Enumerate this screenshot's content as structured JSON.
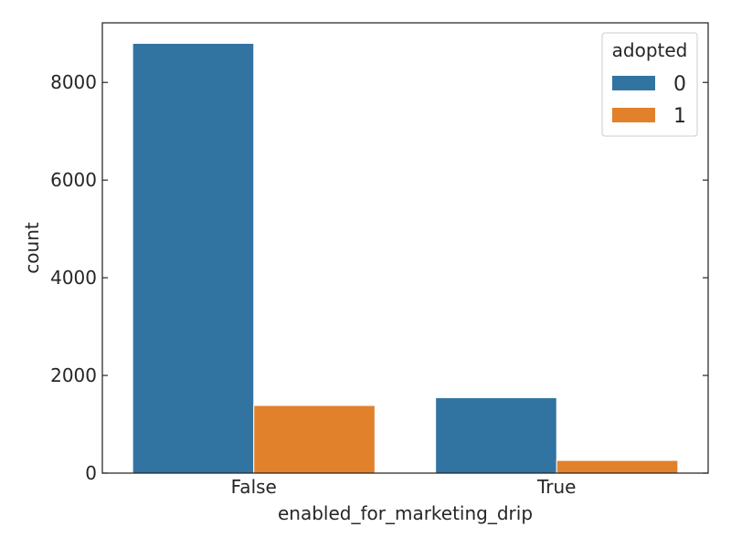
{
  "chart_data": {
    "type": "bar",
    "categories": [
      "False",
      "True"
    ],
    "series": [
      {
        "name": "0",
        "color": "#3274a1",
        "values": [
          8800,
          1545
        ]
      },
      {
        "name": "1",
        "color": "#e1812c",
        "values": [
          1385,
          260
        ]
      }
    ],
    "xlabel": "enabled_for_marketing_drip",
    "ylabel": "count",
    "ylim": [
      0,
      9220
    ],
    "yticks": [
      0,
      2000,
      4000,
      6000,
      8000
    ],
    "yticklabels": [
      "0",
      "2000",
      "4000",
      "6000",
      "8000"
    ],
    "legend": {
      "title": "adopted",
      "placement": "top-right"
    },
    "grid": false
  }
}
